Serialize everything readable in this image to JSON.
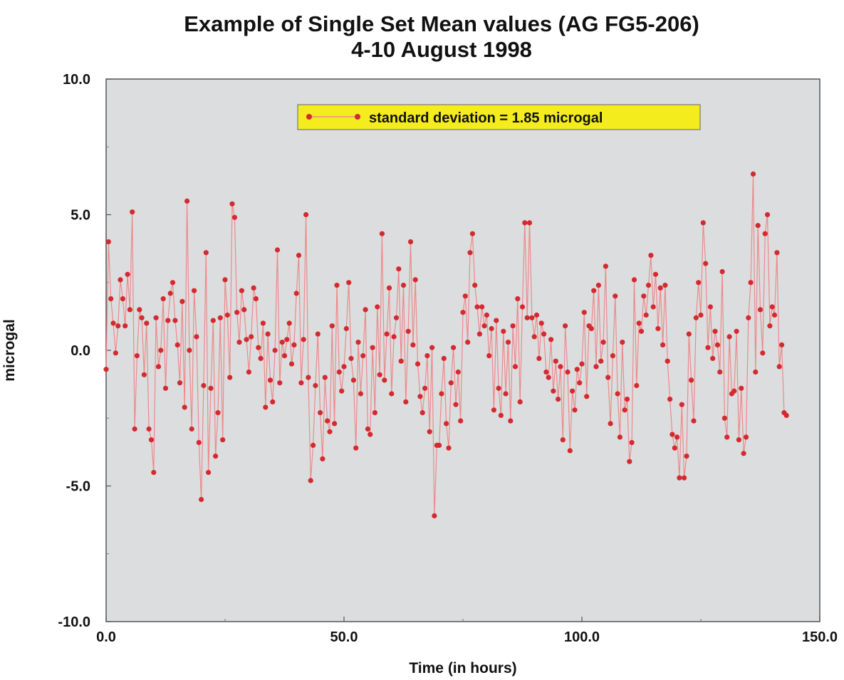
{
  "chart_data": {
    "type": "line",
    "title": "Example of Single Set Mean values (AG FG5-206)",
    "subtitle": "4-10 August 1998",
    "xlabel": "Time (in hours)",
    "ylabel": "microgal",
    "xlim": [
      0,
      150
    ],
    "ylim": [
      -10,
      10
    ],
    "x_ticks": [
      0,
      50,
      100,
      150
    ],
    "x_tick_labels": [
      "0.0",
      "50.0",
      "100.0",
      "150.0"
    ],
    "y_ticks": [
      -10,
      -5,
      0,
      5,
      10
    ],
    "y_tick_labels": [
      "-10.0",
      "-5.0",
      "0.0",
      "5.0",
      "10.0"
    ],
    "grid": false,
    "legend": {
      "placement": "top-center",
      "label": "standard deviation = 1.85 microgal"
    },
    "colors": {
      "plot_bg": "#dcdddf",
      "legend_bg": "#f5ec1e",
      "marker": "#d42a2f",
      "line": "#ec8a8a"
    },
    "series": [
      {
        "name": "standard deviation = 1.85 microgal",
        "x_start": 0,
        "x_step": 0.5,
        "values": [
          -0.7,
          4.0,
          1.9,
          1.0,
          -0.1,
          0.9,
          2.6,
          1.9,
          0.9,
          2.8,
          1.5,
          5.1,
          -2.9,
          -0.2,
          1.5,
          1.2,
          -0.9,
          1.0,
          -2.9,
          -3.3,
          -4.5,
          1.2,
          -0.6,
          0.0,
          1.9,
          -1.4,
          1.1,
          2.1,
          2.5,
          1.1,
          0.2,
          -1.2,
          1.8,
          -2.1,
          5.5,
          0.0,
          -2.9,
          2.2,
          0.5,
          -3.4,
          -5.5,
          -1.3,
          3.6,
          -4.5,
          -1.4,
          1.1,
          -3.9,
          -2.3,
          1.2,
          -3.3,
          2.6,
          1.3,
          -1.0,
          5.4,
          4.9,
          1.4,
          0.3,
          2.2,
          1.5,
          0.4,
          -0.8,
          0.5,
          2.3,
          1.9,
          0.1,
          -0.3,
          1.0,
          -2.1,
          0.6,
          -1.1,
          -1.9,
          0.0,
          3.7,
          -1.2,
          0.3,
          -0.2,
          0.4,
          1.0,
          -0.5,
          0.2,
          2.1,
          3.5,
          -1.2,
          0.4,
          5.0,
          -1.0,
          -4.8,
          -3.5,
          -1.3,
          0.6,
          -2.3,
          -4.0,
          -1.0,
          -2.6,
          -3.0,
          0.9,
          -2.7,
          2.4,
          -0.8,
          -1.5,
          -0.6,
          0.8,
          2.5,
          -0.3,
          -1.1,
          -3.6,
          0.3,
          -1.6,
          -0.2,
          1.5,
          -2.9,
          -3.1,
          0.1,
          -2.3,
          1.6,
          -0.9,
          4.3,
          -1.1,
          0.6,
          2.3,
          -1.6,
          0.5,
          1.2,
          3.0,
          -0.4,
          2.4,
          -1.9,
          0.7,
          4.0,
          0.2,
          2.6,
          -0.5,
          -1.7,
          -2.3,
          -1.4,
          -0.2,
          -3.0,
          0.1,
          -6.1,
          -3.5,
          -3.5,
          -1.6,
          -0.3,
          -2.7,
          -3.6,
          -1.2,
          0.1,
          -2.0,
          -0.8,
          -2.6,
          1.4,
          2.0,
          0.3,
          3.6,
          4.3,
          2.4,
          1.6,
          0.6,
          1.6,
          0.9,
          1.3,
          -0.2,
          0.8,
          -2.2,
          1.1,
          -1.4,
          -2.4,
          0.7,
          -1.6,
          0.3,
          -2.6,
          0.9,
          -0.6,
          1.9,
          -1.9,
          1.6,
          4.7,
          1.2,
          4.7,
          1.2,
          0.5,
          1.3,
          -0.3,
          1.0,
          0.6,
          -0.8,
          -1.0,
          0.4,
          -1.5,
          -0.4,
          -1.8,
          -0.6,
          -3.3,
          0.9,
          -0.8,
          -3.7,
          -1.5,
          -2.2,
          -0.7,
          -1.2,
          -0.5,
          1.4,
          -1.7,
          0.9,
          0.8,
          2.2,
          -0.6,
          2.4,
          -0.4,
          0.3,
          3.1,
          -1.0,
          -2.7,
          -0.2,
          2.0,
          -1.6,
          -3.2,
          0.3,
          -2.2,
          -1.8,
          -4.1,
          -3.4,
          2.6,
          -1.3,
          1.0,
          0.7,
          2.0,
          1.3,
          2.4,
          3.5,
          1.6,
          2.8,
          0.8,
          2.3,
          0.2,
          2.4,
          -0.4,
          -1.8,
          -3.1,
          -3.6,
          -3.2,
          -4.7,
          -2.0,
          -4.7,
          -3.9,
          0.6,
          -1.1,
          -2.6,
          1.2,
          2.5,
          1.3,
          4.7,
          3.2,
          0.1,
          1.6,
          -0.3,
          0.7,
          0.2,
          -0.8,
          2.9,
          -2.5,
          -3.2,
          0.5,
          -1.6,
          -1.5,
          0.7,
          -3.3,
          -1.4,
          -3.8,
          -3.2,
          1.2,
          2.5,
          6.5,
          -0.8,
          4.6,
          1.5,
          -0.1,
          4.3,
          5.0,
          0.9,
          1.6,
          1.3,
          3.6,
          -0.6,
          0.2,
          -2.3,
          -2.4
        ]
      }
    ]
  }
}
